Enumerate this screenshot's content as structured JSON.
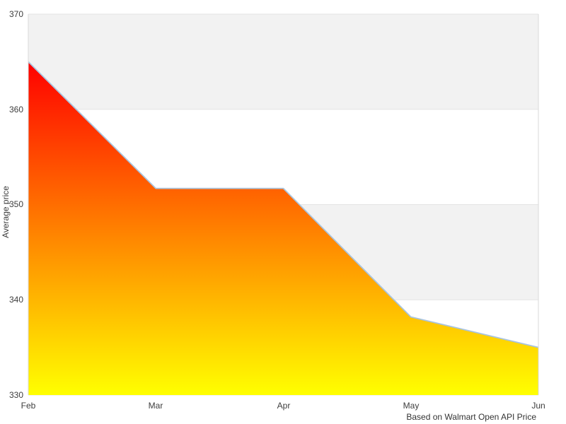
{
  "chart_data": {
    "type": "area",
    "title": "",
    "categories": [
      "Feb",
      "Mar",
      "Apr",
      "May",
      "Jun"
    ],
    "values": [
      365,
      351.7,
      351.7,
      338.2,
      335
    ],
    "series_name": "Average price",
    "xlabel": "",
    "ylabel": "Average price",
    "ylim": [
      330,
      370
    ],
    "ytick_step": 10,
    "ytick_labels": [
      "370",
      "360",
      "350",
      "340",
      "330"
    ],
    "band_ranges": [
      [
        360,
        370
      ],
      [
        340,
        350
      ]
    ],
    "grid": "horizontal gridlines with alternating shaded bands",
    "legend": "none",
    "caption": "Based on Walmart Open API Price",
    "colors": {
      "gradient_top": "#ff0000",
      "gradient_bottom": "#ffff00",
      "line": "#a9c4de",
      "band": "#f2f2f2",
      "gridline": "#e4e4e4",
      "axis_line": "#d9d9d9",
      "text": "#3d3d3d"
    }
  }
}
